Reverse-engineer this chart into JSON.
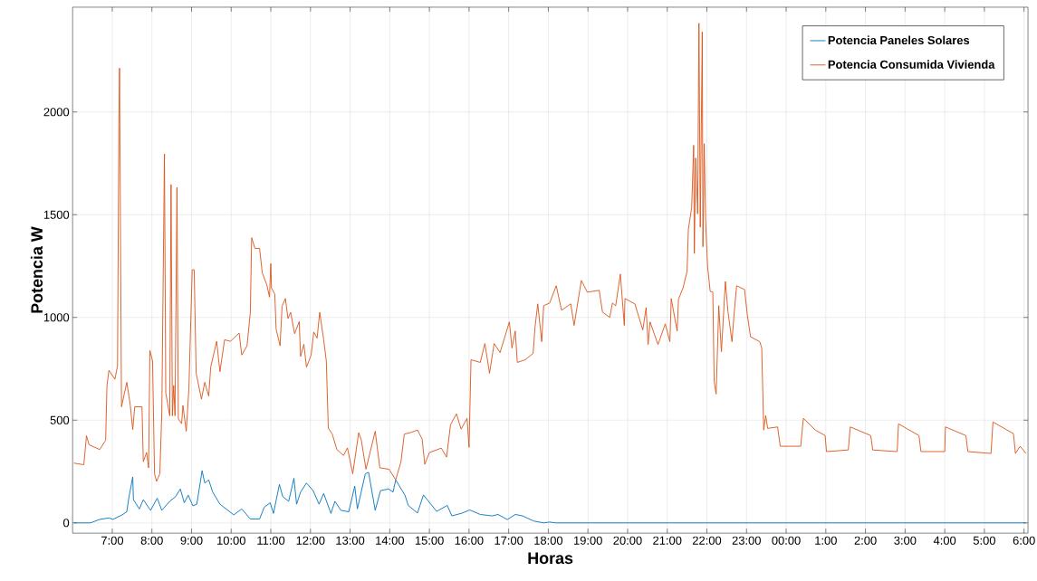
{
  "chart_data": {
    "type": "line",
    "xlabel": "Horas",
    "ylabel": "Potencia W",
    "xlim": [
      "2000-01-01T06:00",
      "2000-01-02T06:06"
    ],
    "ylim": [
      -50,
      2510
    ],
    "xticks": [
      {
        "value": "2000-01-01T07:00",
        "label": "7:00"
      },
      {
        "value": "2000-01-01T08:00",
        "label": "8:00"
      },
      {
        "value": "2000-01-01T09:00",
        "label": "9:00"
      },
      {
        "value": "2000-01-01T10:00",
        "label": "10:00"
      },
      {
        "value": "2000-01-01T11:00",
        "label": "11:00"
      },
      {
        "value": "2000-01-01T12:00",
        "label": "12:00"
      },
      {
        "value": "2000-01-01T13:00",
        "label": "13:00"
      },
      {
        "value": "2000-01-01T14:00",
        "label": "14:00"
      },
      {
        "value": "2000-01-01T15:00",
        "label": "15:00"
      },
      {
        "value": "2000-01-01T16:00",
        "label": "16:00"
      },
      {
        "value": "2000-01-01T17:00",
        "label": "17:00"
      },
      {
        "value": "2000-01-01T18:00",
        "label": "18:00"
      },
      {
        "value": "2000-01-01T19:00",
        "label": "19:00"
      },
      {
        "value": "2000-01-01T20:00",
        "label": "20:00"
      },
      {
        "value": "2000-01-01T21:00",
        "label": "21:00"
      },
      {
        "value": "2000-01-01T22:00",
        "label": "22:00"
      },
      {
        "value": "2000-01-01T23:00",
        "label": "23:00"
      },
      {
        "value": "2000-01-02T00:00",
        "label": "00:00"
      },
      {
        "value": "2000-01-02T01:00",
        "label": "1:00"
      },
      {
        "value": "2000-01-02T02:00",
        "label": "2:00"
      },
      {
        "value": "2000-01-02T03:00",
        "label": "3:00"
      },
      {
        "value": "2000-01-02T04:00",
        "label": "4:00"
      },
      {
        "value": "2000-01-02T05:00",
        "label": "5:00"
      },
      {
        "value": "2000-01-02T06:00",
        "label": "6:00"
      }
    ],
    "yticks": [
      0,
      500,
      1000,
      1500,
      2000
    ],
    "grid": true,
    "legend": "top right",
    "series": [
      {
        "name": "Potencia Paneles Solares",
        "color": "#0072bd",
        "x": [
          "2000-01-01T06:02",
          "2000-01-01T06:27",
          "2000-01-01T06:41",
          "2000-01-01T06:55",
          "2000-01-01T07:01",
          "2000-01-01T07:15",
          "2000-01-01T07:22",
          "2000-01-01T07:25",
          "2000-01-01T07:31",
          "2000-01-01T07:32",
          "2000-01-01T07:41",
          "2000-01-01T07:47",
          "2000-01-01T07:58",
          "2000-01-01T08:08",
          "2000-01-01T08:15",
          "2000-01-01T08:27",
          "2000-01-01T08:36",
          "2000-01-01T08:43",
          "2000-01-01T08:49",
          "2000-01-01T08:55",
          "2000-01-01T09:02",
          "2000-01-01T09:08",
          "2000-01-01T09:16",
          "2000-01-01T09:20",
          "2000-01-01T09:26",
          "2000-01-01T09:32",
          "2000-01-01T09:43",
          "2000-01-01T10:04",
          "2000-01-01T10:16",
          "2000-01-01T10:29",
          "2000-01-01T10:43",
          "2000-01-01T10:50",
          "2000-01-01T10:59",
          "2000-01-01T11:04",
          "2000-01-01T11:13",
          "2000-01-01T11:18",
          "2000-01-01T11:27",
          "2000-01-01T11:35",
          "2000-01-01T11:39",
          "2000-01-01T11:45",
          "2000-01-01T11:54",
          "2000-01-01T12:04",
          "2000-01-01T12:13",
          "2000-01-01T12:20",
          "2000-01-01T12:31",
          "2000-01-01T12:37",
          "2000-01-01T12:46",
          "2000-01-01T12:58",
          "2000-01-01T13:07",
          "2000-01-01T13:11",
          "2000-01-01T13:23",
          "2000-01-01T13:28",
          "2000-01-01T13:38",
          "2000-01-01T13:46",
          "2000-01-01T13:58",
          "2000-01-01T14:05",
          "2000-01-01T14:09",
          "2000-01-01T14:23",
          "2000-01-01T14:28",
          "2000-01-01T14:42",
          "2000-01-01T14:51",
          "2000-01-01T15:02",
          "2000-01-01T15:11",
          "2000-01-01T15:27",
          "2000-01-01T15:34",
          "2000-01-01T15:50",
          "2000-01-01T16:01",
          "2000-01-01T16:17",
          "2000-01-01T16:35",
          "2000-01-01T16:44",
          "2000-01-01T16:58",
          "2000-01-01T17:10",
          "2000-01-01T17:21",
          "2000-01-01T17:38",
          "2000-01-01T17:53",
          "2000-01-01T18:02",
          "2000-01-01T18:11",
          "2000-01-02T06:03"
        ],
        "values": [
          0,
          0,
          17,
          24,
          17,
          39,
          54,
          120,
          224,
          113,
          68,
          113,
          61,
          120,
          61,
          105,
          128,
          165,
          98,
          135,
          83,
          91,
          254,
          194,
          209,
          150,
          91,
          39,
          68,
          19,
          19,
          76,
          98,
          46,
          187,
          128,
          105,
          217,
          91,
          150,
          194,
          157,
          91,
          143,
          46,
          105,
          61,
          54,
          179,
          68,
          239,
          246,
          61,
          157,
          165,
          150,
          209,
          135,
          85,
          48,
          136,
          92,
          56,
          85,
          34,
          48,
          63,
          41,
          34,
          41,
          16,
          41,
          34,
          9,
          0,
          4,
          0,
          0
        ]
      },
      {
        "name": "Potencia Consumida Vivienda",
        "color": "#d95319",
        "x": [
          "2000-01-01T06:02",
          "2000-01-01T06:17",
          "2000-01-01T06:21",
          "2000-01-01T06:25",
          "2000-01-01T06:41",
          "2000-01-01T06:50",
          "2000-01-01T06:52",
          "2000-01-01T06:55",
          "2000-01-01T07:04",
          "2000-01-01T07:08",
          "2000-01-01T07:10",
          "2000-01-01T07:11",
          "2000-01-01T07:14",
          "2000-01-01T07:22",
          "2000-01-01T07:27",
          "2000-01-01T07:31",
          "2000-01-01T07:34",
          "2000-01-01T07:45",
          "2000-01-01T07:47",
          "2000-01-01T07:52",
          "2000-01-01T07:55",
          "2000-01-01T07:57",
          "2000-01-01T08:01",
          "2000-01-01T08:04",
          "2000-01-01T08:07",
          "2000-01-01T08:12",
          "2000-01-01T08:15",
          "2000-01-01T08:19",
          "2000-01-01T08:21",
          "2000-01-01T08:27",
          "2000-01-01T08:29",
          "2000-01-01T08:31",
          "2000-01-01T08:33",
          "2000-01-01T08:35",
          "2000-01-01T08:38",
          "2000-01-01T08:40",
          "2000-01-01T08:45",
          "2000-01-01T08:47",
          "2000-01-01T08:52",
          "2000-01-01T08:56",
          "2000-01-01T09:01",
          "2000-01-01T09:04",
          "2000-01-01T09:07",
          "2000-01-01T09:15",
          "2000-01-01T09:20",
          "2000-01-01T09:26",
          "2000-01-01T09:29",
          "2000-01-01T09:38",
          "2000-01-01T09:43",
          "2000-01-01T09:50",
          "2000-01-01T09:59",
          "2000-01-01T10:12",
          "2000-01-01T10:16",
          "2000-01-01T10:24",
          "2000-01-01T10:29",
          "2000-01-01T10:31",
          "2000-01-01T10:36",
          "2000-01-01T10:43",
          "2000-01-01T10:47",
          "2000-01-01T10:54",
          "2000-01-01T10:58",
          "2000-01-01T11:00",
          "2000-01-01T11:01",
          "2000-01-01T11:06",
          "2000-01-01T11:08",
          "2000-01-01T11:14",
          "2000-01-01T11:17",
          "2000-01-01T11:22",
          "2000-01-01T11:26",
          "2000-01-01T11:30",
          "2000-01-01T11:36",
          "2000-01-01T11:43",
          "2000-01-01T11:45",
          "2000-01-01T11:50",
          "2000-01-01T11:54",
          "2000-01-01T12:01",
          "2000-01-01T12:05",
          "2000-01-01T12:10",
          "2000-01-01T12:14",
          "2000-01-01T12:20",
          "2000-01-01T12:24",
          "2000-01-01T12:27",
          "2000-01-01T12:33",
          "2000-01-01T12:40",
          "2000-01-01T12:50",
          "2000-01-01T12:56",
          "2000-01-01T13:04",
          "2000-01-01T13:13",
          "2000-01-01T13:17",
          "2000-01-01T13:24",
          "2000-01-01T13:38",
          "2000-01-01T13:45",
          "2000-01-01T13:59",
          "2000-01-01T14:09",
          "2000-01-01T14:17",
          "2000-01-01T14:22",
          "2000-01-01T14:31",
          "2000-01-01T14:42",
          "2000-01-01T14:49",
          "2000-01-01T14:53",
          "2000-01-01T15:00",
          "2000-01-01T15:18",
          "2000-01-01T15:26",
          "2000-01-01T15:32",
          "2000-01-01T15:41",
          "2000-01-01T15:48",
          "2000-01-01T15:57",
          "2000-01-01T16:00",
          "2000-01-01T16:03",
          "2000-01-01T16:17",
          "2000-01-01T16:24",
          "2000-01-01T16:31",
          "2000-01-01T16:38",
          "2000-01-01T16:47",
          "2000-01-01T17:01",
          "2000-01-01T17:05",
          "2000-01-01T17:10",
          "2000-01-01T17:13",
          "2000-01-01T17:25",
          "2000-01-01T17:37",
          "2000-01-01T17:40",
          "2000-01-01T17:44",
          "2000-01-01T17:50",
          "2000-01-01T17:53",
          "2000-01-01T18:02",
          "2000-01-01T18:12",
          "2000-01-01T18:20",
          "2000-01-01T18:34",
          "2000-01-01T18:39",
          "2000-01-01T18:50",
          "2000-01-01T18:59",
          "2000-01-01T19:17",
          "2000-01-01T19:22",
          "2000-01-01T19:33",
          "2000-01-01T19:37",
          "2000-01-01T19:42",
          "2000-01-01T19:49",
          "2000-01-01T19:55",
          "2000-01-01T19:56",
          "2000-01-01T20:11",
          "2000-01-01T20:23",
          "2000-01-01T20:28",
          "2000-01-01T20:31",
          "2000-01-01T20:34",
          "2000-01-01T20:46",
          "2000-01-01T20:57",
          "2000-01-01T21:04",
          "2000-01-01T21:06",
          "2000-01-01T21:15",
          "2000-01-01T21:17",
          "2000-01-01T21:24",
          "2000-01-01T21:30",
          "2000-01-01T21:32",
          "2000-01-01T21:37",
          "2000-01-01T21:40",
          "2000-01-01T21:41",
          "2000-01-01T21:43",
          "2000-01-01T21:46",
          "2000-01-01T21:48",
          "2000-01-01T21:50",
          "2000-01-01T21:53",
          "2000-01-01T21:54",
          "2000-01-01T21:56",
          "2000-01-01T21:58",
          "2000-01-01T22:01",
          "2000-01-01T22:05",
          "2000-01-01T22:09",
          "2000-01-01T22:11",
          "2000-01-01T22:14",
          "2000-01-01T22:18",
          "2000-01-01T22:22",
          "2000-01-01T22:28",
          "2000-01-01T22:32",
          "2000-01-01T22:38",
          "2000-01-01T22:41",
          "2000-01-01T22:45",
          "2000-01-01T22:57",
          "2000-01-01T23:01",
          "2000-01-01T23:06",
          "2000-01-01T23:20",
          "2000-01-01T23:23",
          "2000-01-01T23:26",
          "2000-01-01T23:29",
          "2000-01-01T23:32",
          "2000-01-01T23:47",
          "2000-01-01T23:51",
          "2000-01-02T00:22",
          "2000-01-02T00:26",
          "2000-01-02T00:44",
          "2000-01-02T00:59",
          "2000-01-02T01:01",
          "2000-01-02T01:34",
          "2000-01-02T01:37",
          "2000-01-02T02:08",
          "2000-01-02T02:11",
          "2000-01-02T02:48",
          "2000-01-02T02:50",
          "2000-01-02T03:21",
          "2000-01-02T03:24",
          "2000-01-02T04:00",
          "2000-01-02T04:01",
          "2000-01-02T04:32",
          "2000-01-02T04:35",
          "2000-01-02T05:10",
          "2000-01-02T05:13",
          "2000-01-02T05:44",
          "2000-01-02T05:47",
          "2000-01-02T05:54",
          "2000-01-02T06:03"
        ],
        "values": [
          291,
          283,
          424,
          380,
          357,
          402,
          669,
          743,
          699,
          765,
          1944,
          2214,
          565,
          684,
          580,
          454,
          565,
          565,
          298,
          343,
          268,
          839,
          788,
          239,
          202,
          239,
          536,
          1796,
          632,
          521,
          1647,
          521,
          669,
          521,
          1633,
          506,
          483,
          572,
          446,
          654,
          1232,
          1232,
          728,
          602,
          684,
          617,
          758,
          884,
          736,
          891,
          884,
          924,
          817,
          862,
          1025,
          1388,
          1336,
          1336,
          1218,
          1158,
          1099,
          1262,
          1143,
          1114,
          943,
          862,
          1054,
          1092,
          995,
          1025,
          921,
          980,
          810,
          869,
          758,
          817,
          929,
          899,
          1025,
          891,
          788,
          461,
          432,
          357,
          328,
          365,
          239,
          439,
          402,
          261,
          446,
          268,
          261,
          209,
          298,
          432,
          439,
          452,
          408,
          285,
          342,
          364,
          320,
          478,
          531,
          456,
          509,
          368,
          794,
          781,
          873,
          728,
          873,
          829,
          978,
          851,
          934,
          781,
          794,
          825,
          956,
          1066,
          882,
          1057,
          1070,
          1154,
          1035,
          1066,
          961,
          1180,
          1123,
          1132,
          1026,
          1000,
          1070,
          1057,
          1211,
          961,
          1092,
          1066,
          939,
          1048,
          868,
          978,
          868,
          969,
          882,
          1092,
          934,
          1088,
          1145,
          1224,
          1430,
          1535,
          1838,
          1311,
          1776,
          1504,
          2432,
          1439,
          2390,
          1344,
          1846,
          1474,
          1250,
          1127,
          1123,
          689,
          627,
          1057,
          833,
          1175,
          1026,
          882,
          1009,
          1154,
          1136,
          1018,
          906,
          882,
          851,
          452,
          522,
          460,
          467,
          373,
          373,
          509,
          452,
          425,
          347,
          355,
          467,
          425,
          355,
          347,
          482,
          425,
          347,
          347,
          467,
          425,
          347,
          338,
          491,
          434,
          338,
          373,
          338
        ]
      }
    ]
  }
}
